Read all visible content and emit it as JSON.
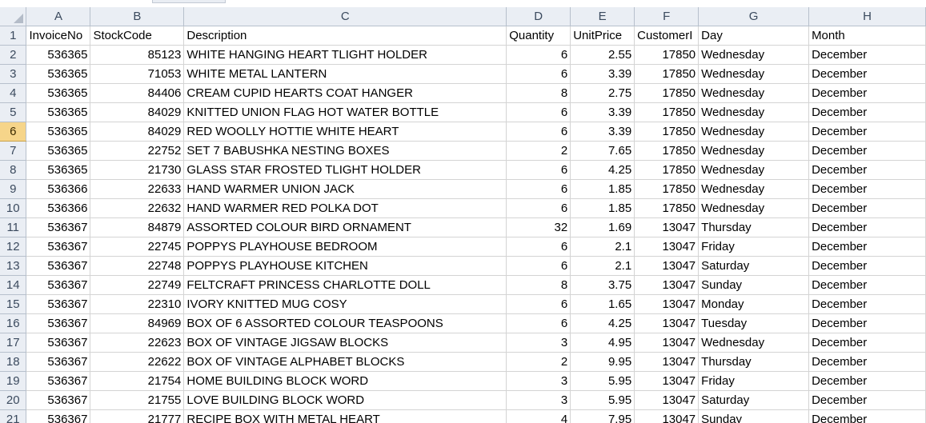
{
  "columns": [
    "A",
    "B",
    "C",
    "D",
    "E",
    "F",
    "G",
    "H"
  ],
  "header_row": [
    "InvoiceNo",
    "StockCode",
    "Description",
    "Quantity",
    "UnitPrice",
    "CustomerI",
    "Day",
    "Month"
  ],
  "selected_row": 6,
  "rows": [
    {
      "n": "2",
      "c": [
        "536365",
        "85123",
        "WHITE HANGING HEART TLIGHT HOLDER",
        "6",
        "2.55",
        "17850",
        "Wednesday",
        "December"
      ]
    },
    {
      "n": "3",
      "c": [
        "536365",
        "71053",
        "WHITE METAL LANTERN",
        "6",
        "3.39",
        "17850",
        "Wednesday",
        "December"
      ]
    },
    {
      "n": "4",
      "c": [
        "536365",
        "84406",
        "CREAM CUPID HEARTS COAT HANGER",
        "8",
        "2.75",
        "17850",
        "Wednesday",
        "December"
      ]
    },
    {
      "n": "5",
      "c": [
        "536365",
        "84029",
        "KNITTED UNION FLAG HOT WATER BOTTLE",
        "6",
        "3.39",
        "17850",
        "Wednesday",
        "December"
      ]
    },
    {
      "n": "6",
      "c": [
        "536365",
        "84029",
        "RED WOOLLY HOTTIE WHITE HEART",
        "6",
        "3.39",
        "17850",
        "Wednesday",
        "December"
      ]
    },
    {
      "n": "7",
      "c": [
        "536365",
        "22752",
        "SET 7 BABUSHKA NESTING BOXES",
        "2",
        "7.65",
        "17850",
        "Wednesday",
        "December"
      ]
    },
    {
      "n": "8",
      "c": [
        "536365",
        "21730",
        "GLASS STAR FROSTED TLIGHT HOLDER",
        "6",
        "4.25",
        "17850",
        "Wednesday",
        "December"
      ]
    },
    {
      "n": "9",
      "c": [
        "536366",
        "22633",
        "HAND WARMER UNION JACK",
        "6",
        "1.85",
        "17850",
        "Wednesday",
        "December"
      ]
    },
    {
      "n": "10",
      "c": [
        "536366",
        "22632",
        "HAND WARMER RED POLKA DOT",
        "6",
        "1.85",
        "17850",
        "Wednesday",
        "December"
      ]
    },
    {
      "n": "11",
      "c": [
        "536367",
        "84879",
        "ASSORTED COLOUR BIRD ORNAMENT",
        "32",
        "1.69",
        "13047",
        "Thursday",
        "December"
      ]
    },
    {
      "n": "12",
      "c": [
        "536367",
        "22745",
        "POPPYS PLAYHOUSE BEDROOM",
        "6",
        "2.1",
        "13047",
        "Friday",
        "December"
      ]
    },
    {
      "n": "13",
      "c": [
        "536367",
        "22748",
        "POPPYS PLAYHOUSE KITCHEN",
        "6",
        "2.1",
        "13047",
        "Saturday",
        "December"
      ]
    },
    {
      "n": "14",
      "c": [
        "536367",
        "22749",
        "FELTCRAFT PRINCESS CHARLOTTE DOLL",
        "8",
        "3.75",
        "13047",
        "Sunday",
        "December"
      ]
    },
    {
      "n": "15",
      "c": [
        "536367",
        "22310",
        "IVORY KNITTED MUG COSY",
        "6",
        "1.65",
        "13047",
        "Monday",
        "December"
      ]
    },
    {
      "n": "16",
      "c": [
        "536367",
        "84969",
        "BOX OF 6 ASSORTED COLOUR TEASPOONS",
        "6",
        "4.25",
        "13047",
        "Tuesday",
        "December"
      ]
    },
    {
      "n": "17",
      "c": [
        "536367",
        "22623",
        "BOX OF VINTAGE JIGSAW BLOCKS",
        "3",
        "4.95",
        "13047",
        "Wednesday",
        "December"
      ]
    },
    {
      "n": "18",
      "c": [
        "536367",
        "22622",
        "BOX OF VINTAGE ALPHABET BLOCKS",
        "2",
        "9.95",
        "13047",
        "Thursday",
        "December"
      ]
    },
    {
      "n": "19",
      "c": [
        "536367",
        "21754",
        "HOME BUILDING BLOCK WORD",
        "3",
        "5.95",
        "13047",
        "Friday",
        "December"
      ]
    },
    {
      "n": "20",
      "c": [
        "536367",
        "21755",
        "LOVE BUILDING BLOCK WORD",
        "3",
        "5.95",
        "13047",
        "Saturday",
        "December"
      ]
    },
    {
      "n": "21",
      "c": [
        "536367",
        "21777",
        "RECIPE BOX WITH METAL HEART",
        "4",
        "7.95",
        "13047",
        "Sunday",
        "December"
      ]
    }
  ]
}
